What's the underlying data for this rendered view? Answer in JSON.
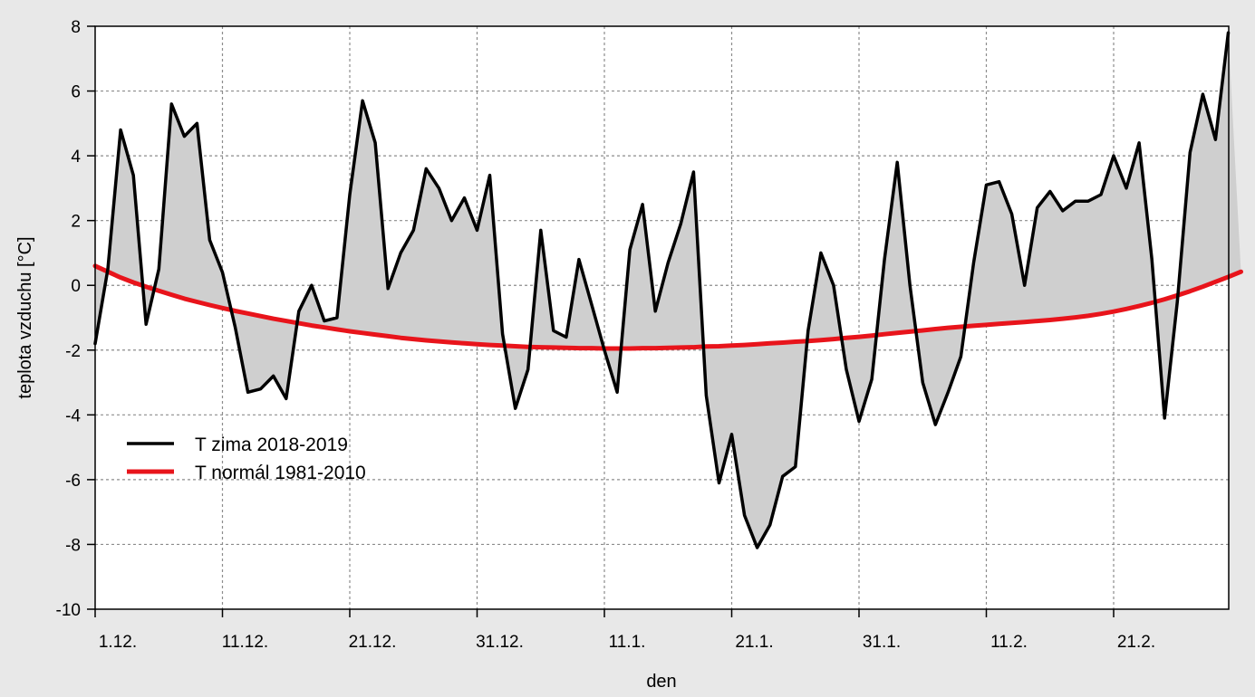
{
  "chart_data": {
    "type": "line",
    "xlabel": "den",
    "ylabel": "teplota vzduchu [°C]",
    "ylim": [
      -10,
      8
    ],
    "yticks": [
      8,
      6,
      4,
      2,
      0,
      -2,
      -4,
      -6,
      -8,
      -10
    ],
    "x_tick_labels": [
      "1.12.",
      "11.12.",
      "21.12.",
      "31.12.",
      "11.1.",
      "21.1.",
      "31.1.",
      "11.2.",
      "21.2."
    ],
    "grid": true,
    "legend_position": "bottom-left",
    "fill_between": true,
    "series": [
      {
        "name": "T zima 2018-2019",
        "color": "#000000",
        "values": [
          -1.8,
          0.5,
          4.8,
          3.4,
          -1.2,
          0.5,
          5.6,
          4.6,
          5.0,
          1.4,
          0.4,
          -1.3,
          -3.3,
          -3.2,
          -2.8,
          -3.5,
          -0.8,
          0.0,
          -1.1,
          -1.0,
          2.8,
          5.7,
          4.4,
          -0.1,
          1.0,
          1.7,
          3.6,
          3.0,
          2.0,
          2.7,
          1.7,
          3.4,
          -1.5,
          -3.8,
          -2.6,
          1.7,
          -1.4,
          -1.6,
          0.8,
          -0.6,
          -2.0,
          -3.3,
          1.1,
          2.5,
          -0.8,
          0.7,
          1.9,
          3.5,
          -3.4,
          -6.1,
          -4.6,
          -7.1,
          -8.1,
          -7.4,
          -5.9,
          -5.6,
          -1.4,
          1.0,
          0.0,
          -2.6,
          -4.2,
          -2.9,
          0.8,
          3.8,
          0.0,
          -3.0,
          -4.3,
          -3.3,
          -2.2,
          0.7,
          3.1,
          3.2,
          2.2,
          0.0,
          2.4,
          2.9,
          2.3,
          2.6,
          2.6,
          2.8,
          4.0,
          3.0,
          4.4,
          0.8,
          -4.1,
          -0.5,
          4.1,
          5.9,
          4.5,
          7.8
        ]
      },
      {
        "name": "T normál 1981-2010",
        "color": "#e8141b",
        "values": [
          0.6,
          0.42,
          0.24,
          0.09,
          -0.04,
          -0.17,
          -0.29,
          -0.41,
          -0.51,
          -0.61,
          -0.7,
          -0.79,
          -0.87,
          -0.95,
          -1.03,
          -1.1,
          -1.17,
          -1.24,
          -1.3,
          -1.36,
          -1.42,
          -1.47,
          -1.52,
          -1.57,
          -1.62,
          -1.66,
          -1.7,
          -1.73,
          -1.76,
          -1.79,
          -1.82,
          -1.84,
          -1.86,
          -1.88,
          -1.9,
          -1.91,
          -1.92,
          -1.93,
          -1.94,
          -1.94,
          -1.95,
          -1.95,
          -1.95,
          -1.94,
          -1.94,
          -1.93,
          -1.92,
          -1.91,
          -1.89,
          -1.88,
          -1.86,
          -1.84,
          -1.82,
          -1.79,
          -1.77,
          -1.74,
          -1.72,
          -1.69,
          -1.66,
          -1.62,
          -1.59,
          -1.55,
          -1.51,
          -1.47,
          -1.43,
          -1.39,
          -1.35,
          -1.31,
          -1.28,
          -1.25,
          -1.22,
          -1.19,
          -1.16,
          -1.13,
          -1.1,
          -1.07,
          -1.03,
          -0.99,
          -0.94,
          -0.88,
          -0.81,
          -0.73,
          -0.64,
          -0.54,
          -0.43,
          -0.31,
          -0.18,
          -0.04,
          0.11,
          0.26,
          0.42
        ]
      }
    ]
  }
}
